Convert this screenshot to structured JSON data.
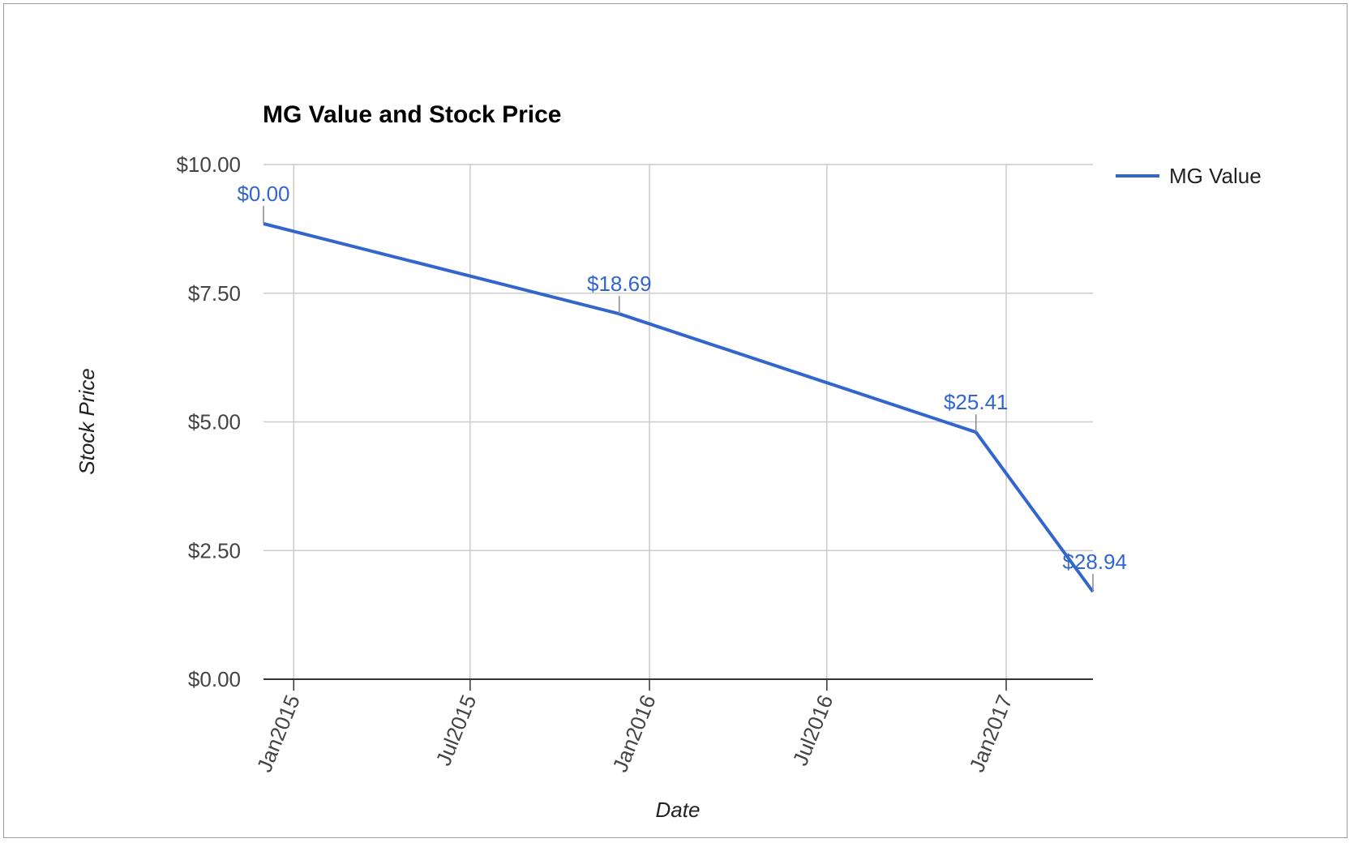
{
  "chart_data": {
    "type": "line",
    "title": "MG Value and Stock Price",
    "xlabel": "Date",
    "ylabel": "Stock Price",
    "x_ticks": [
      "2015-01-01",
      "2015-07-01",
      "2016-01-01",
      "2016-07-01",
      "2017-01-01"
    ],
    "x_tick_labels": [
      "Jan2015",
      "Jul2015",
      "Jan2016",
      "Jul2016",
      "Jan2017"
    ],
    "xlim": [
      "2014-12-01",
      "2017-03-31"
    ],
    "ylim": [
      0,
      10
    ],
    "y_ticks": [
      0,
      2.5,
      5,
      7.5,
      10
    ],
    "y_tick_labels": [
      "$0.00",
      "$2.50",
      "$5.00",
      "$7.50",
      "$10.00"
    ],
    "grid": true,
    "legend_position": "right",
    "series": [
      {
        "name": "MG Value",
        "color": "#3366cc",
        "points": [
          {
            "x": "2014-12-01",
            "y": 8.85,
            "label": "$0.00"
          },
          {
            "x": "2015-12-01",
            "y": 7.1,
            "label": "$18.69"
          },
          {
            "x": "2016-12-01",
            "y": 4.8,
            "label": "$25.41"
          },
          {
            "x": "2017-03-31",
            "y": 1.7,
            "label": "$28.94"
          }
        ]
      }
    ]
  }
}
